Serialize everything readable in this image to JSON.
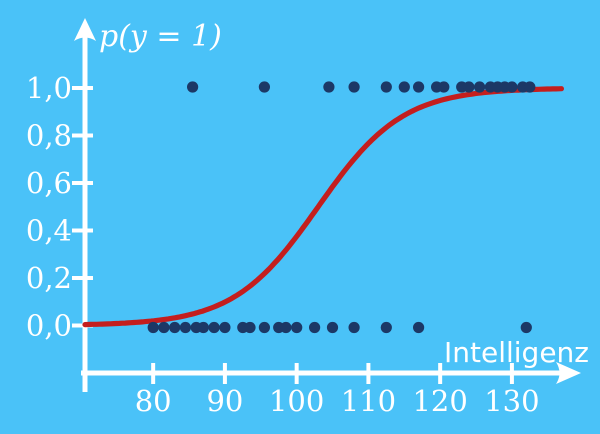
{
  "colors": {
    "background": "#4AC2F8",
    "axis": "#FFFFFF",
    "point": "#1C3866",
    "curve": "#C41E1E",
    "text": "#FFFFFF"
  },
  "chart_data": {
    "type": "scatter",
    "title": "p(y = 1)",
    "xlabel": "Intelligenz",
    "ylabel": "p(y = 1)",
    "grid": false,
    "legend": false,
    "xlim": [
      70.5,
      138.5
    ],
    "ylim": [
      0,
      1
    ],
    "x_ticks": {
      "values": [
        80,
        90,
        100,
        110,
        120,
        130
      ],
      "labels": [
        "80",
        "90",
        "100",
        "110",
        "120",
        "130"
      ]
    },
    "y_ticks": {
      "values": [
        0.0,
        0.2,
        0.4,
        0.6,
        0.8,
        1.0
      ],
      "labels": [
        "0,0",
        "0,2",
        "0,4",
        "0,6",
        "0,8",
        "1,0"
      ]
    },
    "series": [
      {
        "name": "observations-y1",
        "y": 1,
        "x": [
          85.5,
          95.5,
          104.5,
          108,
          112.5,
          115,
          117,
          119.5,
          120.5,
          123,
          124,
          125.5,
          127,
          128,
          129,
          130,
          131.5,
          132.5
        ]
      },
      {
        "name": "observations-y0",
        "y": 0,
        "x": [
          80,
          81.5,
          83,
          84.5,
          86,
          87,
          88.5,
          90,
          92.5,
          93.5,
          95.5,
          97.5,
          98.5,
          100,
          102.5,
          105,
          108,
          112.5,
          117,
          132
        ]
      }
    ],
    "curve": {
      "name": "logistic-regression-fit",
      "model": "logistic",
      "x0": 103,
      "k": 0.17,
      "x_start": 70.5,
      "x_end": 137.1
    }
  }
}
